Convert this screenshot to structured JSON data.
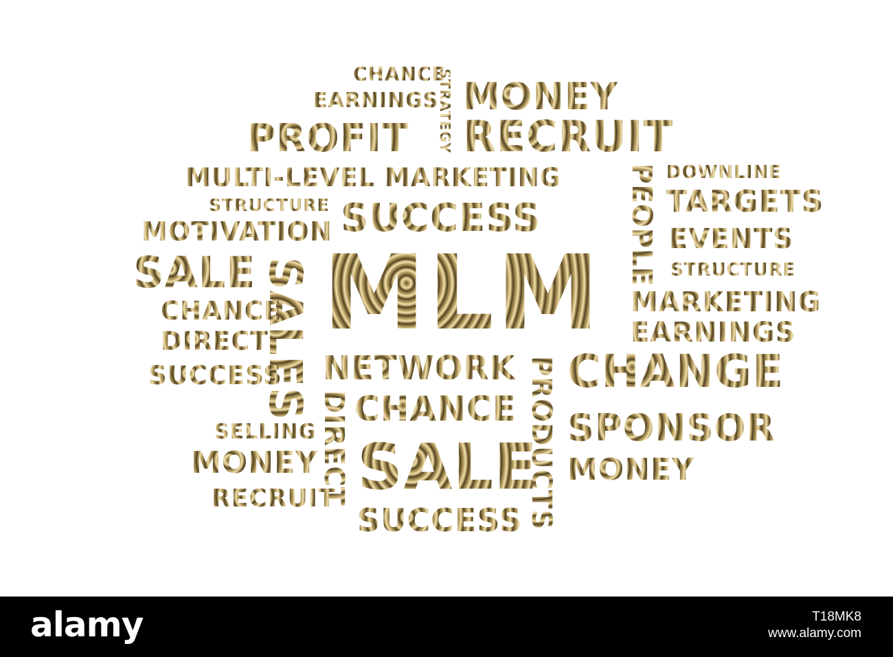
{
  "cloud": {
    "words": {
      "chance_top": "CHANCE",
      "strategy": "STRATEGY",
      "earnings_top": "EARNINGS",
      "money_top": "MONEY",
      "profit": "PROFIT",
      "recruit_top": "RECRUIT",
      "mlm_phrase": "MULTI-LEVEL MARKETING",
      "downline": "DOWNLINE",
      "people": "PEOPLE",
      "targets": "TARGETS",
      "structure_left": "STRUCTURE",
      "success_top": "SUCCESS",
      "motivation": "MOTIVATION",
      "events": "EVENTS",
      "structure_right": "STRUCTURE",
      "sale_left": "SALE",
      "mlm": "MLM",
      "sales": "SALES",
      "marketing": "MARKETING",
      "chance_left": "CHANCE",
      "earnings_right": "EARNINGS",
      "direct_left": "DIRECT",
      "success_left": "SUCCESS",
      "network": "NETWORK",
      "products": "PRODUCTS",
      "change": "CHANGE",
      "chance_center": "CHANCE",
      "direct_vertical": "DIRECT",
      "selling": "SELLING",
      "sponsor": "SPONSOR",
      "money_left": "MONEY",
      "sale_center": "SALE",
      "money_right": "MONEY",
      "recruit_bottom": "RECRUIT",
      "success_bottom": "SUCCESS"
    }
  },
  "footer": {
    "brand": "alamy",
    "image_id": "T18MK8",
    "site": "www.alamy.com"
  },
  "colors": {
    "background": "#ffffff",
    "footer_bg": "#000000",
    "footer_text": "#ffffff",
    "gold_dark": "#3c3018",
    "gold_mid": "#b89f62",
    "gold_light": "#f3e2b0"
  }
}
